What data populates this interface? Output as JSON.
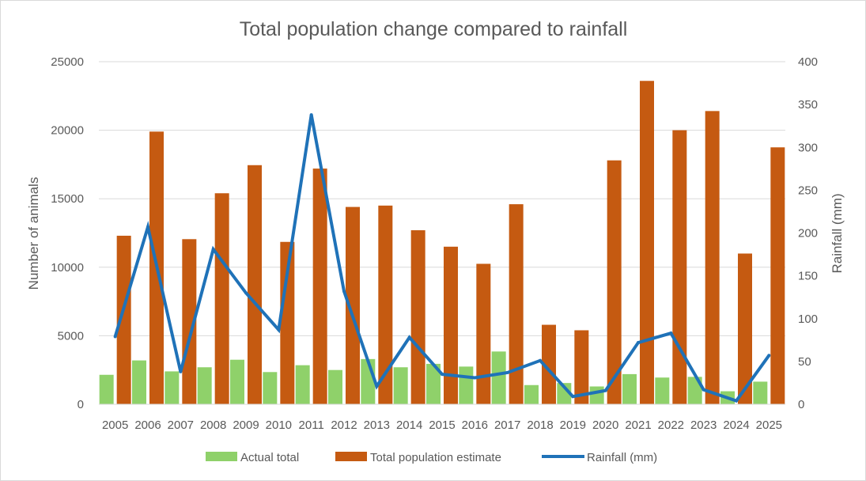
{
  "chart_data": {
    "type": "bar",
    "title": "Total population change compared to rainfall",
    "xlabel": "",
    "ylabel": "Number of animals",
    "y2label": "Rainfall (mm)",
    "ylim": [
      0,
      25000
    ],
    "y2lim": [
      0,
      400
    ],
    "yticks": [
      0,
      5000,
      10000,
      15000,
      20000,
      25000
    ],
    "y2ticks": [
      0,
      50,
      100,
      150,
      200,
      250,
      300,
      350,
      400
    ],
    "grid": true,
    "legend": "bottom",
    "categories": [
      "2005",
      "2006",
      "2007",
      "2008",
      "2009",
      "2010",
      "2011",
      "2012",
      "2013",
      "2014",
      "2015",
      "2016",
      "2017",
      "2018",
      "2019",
      "2020",
      "2021",
      "2022",
      "2023",
      "2024",
      "2025"
    ],
    "series": [
      {
        "name": "Actual total",
        "kind": "bar",
        "axis": "left",
        "color": "#8fd16a",
        "values": [
          2150,
          3200,
          2400,
          2700,
          3250,
          2350,
          2850,
          2500,
          3300,
          2700,
          2950,
          2750,
          3850,
          1400,
          1550,
          1300,
          2200,
          1950,
          2000,
          950,
          1650
        ]
      },
      {
        "name": "Total population estimate",
        "kind": "bar",
        "axis": "left",
        "color": "#c55a11",
        "values": [
          12300,
          19900,
          12050,
          15400,
          17450,
          11850,
          17200,
          14400,
          14500,
          12700,
          11500,
          10250,
          14600,
          5800,
          5400,
          17800,
          23600,
          20000,
          21400,
          11000,
          18750
        ]
      },
      {
        "name": "Rainfall (mm)",
        "kind": "line",
        "axis": "right",
        "color": "#1f72b8",
        "values": [
          79,
          207,
          38,
          181,
          130,
          87,
          338,
          132,
          21,
          78,
          35,
          31,
          37,
          51,
          9,
          16,
          72,
          83,
          17,
          4,
          57
        ]
      }
    ]
  }
}
